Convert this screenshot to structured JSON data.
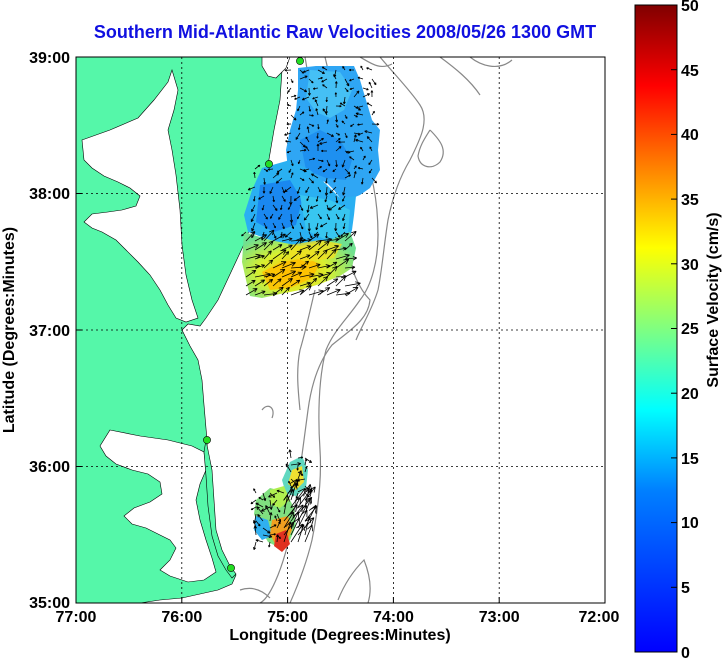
{
  "title": "Southern Mid-Atlantic Raw Velocities 2008/05/26 1300 GMT",
  "axes": {
    "xlabel": "Longitude (Degrees:Minutes)",
    "ylabel": "Latitude (Degrees:Minutes)",
    "xticks": [
      "77:00",
      "76:00",
      "75:00",
      "74:00",
      "73:00",
      "72:00"
    ],
    "yticks": [
      "39:00",
      "38:00",
      "37:00",
      "36:00",
      "35:00"
    ]
  },
  "colorbar": {
    "label": "Surface Velocity (cm/s)",
    "ticks": [
      "50",
      "45",
      "40",
      "35",
      "30",
      "25",
      "20",
      "15",
      "10",
      "5",
      "0"
    ],
    "min": 0,
    "max": 50
  },
  "colors": {
    "land": "#55f7a9",
    "title": "#1010e0",
    "station": "#22dd22"
  }
}
